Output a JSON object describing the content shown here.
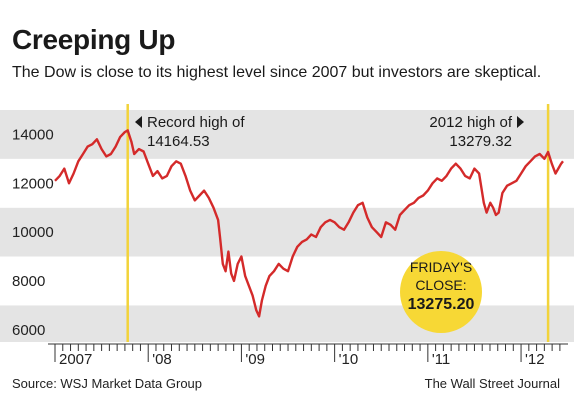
{
  "chart_data": {
    "type": "line",
    "title": "Creeping Up",
    "subtitle": "The Dow is close to its highest level since 2007 but investors are skeptical.",
    "xlabel": "",
    "ylabel": "",
    "ylim": [
      5500,
      15000
    ],
    "yticks": [
      {
        "value": 6000,
        "label": "6000"
      },
      {
        "value": 8000,
        "label": "8000"
      },
      {
        "value": 10000,
        "label": "10000"
      },
      {
        "value": 12000,
        "label": "12000"
      },
      {
        "value": 14000,
        "label": "14000"
      }
    ],
    "xlim": [
      2007.0,
      2012.45
    ],
    "xticks": [
      {
        "value": 2007,
        "label": "2007"
      },
      {
        "value": 2008,
        "label": "'08"
      },
      {
        "value": 2009,
        "label": "'09"
      },
      {
        "value": 2010,
        "label": "'10"
      },
      {
        "value": 2011,
        "label": "'11"
      },
      {
        "value": 2012,
        "label": "'12"
      }
    ],
    "grid": "horizontal bands",
    "series": [
      {
        "name": "",
        "color": "#d42a2a",
        "points": [
          [
            2007.0,
            12100
          ],
          [
            2007.05,
            12300
          ],
          [
            2007.1,
            12600
          ],
          [
            2007.15,
            12000
          ],
          [
            2007.2,
            12400
          ],
          [
            2007.25,
            12900
          ],
          [
            2007.3,
            13200
          ],
          [
            2007.35,
            13500
          ],
          [
            2007.4,
            13600
          ],
          [
            2007.45,
            13800
          ],
          [
            2007.5,
            13400
          ],
          [
            2007.55,
            13100
          ],
          [
            2007.6,
            13200
          ],
          [
            2007.65,
            13500
          ],
          [
            2007.7,
            13900
          ],
          [
            2007.75,
            14100
          ],
          [
            2007.78,
            14164.53
          ],
          [
            2007.82,
            13700
          ],
          [
            2007.85,
            13200
          ],
          [
            2007.9,
            13400
          ],
          [
            2007.95,
            13300
          ],
          [
            2008.0,
            12800
          ],
          [
            2008.05,
            12300
          ],
          [
            2008.1,
            12500
          ],
          [
            2008.15,
            12200
          ],
          [
            2008.2,
            12300
          ],
          [
            2008.25,
            12700
          ],
          [
            2008.3,
            12900
          ],
          [
            2008.35,
            12800
          ],
          [
            2008.4,
            12300
          ],
          [
            2008.45,
            11700
          ],
          [
            2008.5,
            11300
          ],
          [
            2008.55,
            11500
          ],
          [
            2008.6,
            11700
          ],
          [
            2008.65,
            11400
          ],
          [
            2008.7,
            11000
          ],
          [
            2008.75,
            10500
          ],
          [
            2008.77,
            9800
          ],
          [
            2008.8,
            8700
          ],
          [
            2008.83,
            8400
          ],
          [
            2008.86,
            9200
          ],
          [
            2008.89,
            8300
          ],
          [
            2008.92,
            8000
          ],
          [
            2008.96,
            8700
          ],
          [
            2009.0,
            9000
          ],
          [
            2009.04,
            8200
          ],
          [
            2009.08,
            7800
          ],
          [
            2009.12,
            7400
          ],
          [
            2009.16,
            6800
          ],
          [
            2009.19,
            6547
          ],
          [
            2009.22,
            7200
          ],
          [
            2009.26,
            7800
          ],
          [
            2009.3,
            8200
          ],
          [
            2009.35,
            8400
          ],
          [
            2009.4,
            8700
          ],
          [
            2009.45,
            8500
          ],
          [
            2009.5,
            8400
          ],
          [
            2009.55,
            9000
          ],
          [
            2009.6,
            9400
          ],
          [
            2009.65,
            9600
          ],
          [
            2009.7,
            9700
          ],
          [
            2009.75,
            9900
          ],
          [
            2009.8,
            9800
          ],
          [
            2009.85,
            10200
          ],
          [
            2009.9,
            10400
          ],
          [
            2009.95,
            10500
          ],
          [
            2010.0,
            10400
          ],
          [
            2010.05,
            10200
          ],
          [
            2010.1,
            10100
          ],
          [
            2010.15,
            10400
          ],
          [
            2010.2,
            10800
          ],
          [
            2010.25,
            11100
          ],
          [
            2010.3,
            11200
          ],
          [
            2010.35,
            10600
          ],
          [
            2010.4,
            10200
          ],
          [
            2010.45,
            10000
          ],
          [
            2010.5,
            9800
          ],
          [
            2010.55,
            10400
          ],
          [
            2010.6,
            10300
          ],
          [
            2010.65,
            10100
          ],
          [
            2010.7,
            10700
          ],
          [
            2010.75,
            10900
          ],
          [
            2010.8,
            11100
          ],
          [
            2010.85,
            11200
          ],
          [
            2010.9,
            11400
          ],
          [
            2010.95,
            11500
          ],
          [
            2011.0,
            11700
          ],
          [
            2011.05,
            12000
          ],
          [
            2011.1,
            12200
          ],
          [
            2011.15,
            12100
          ],
          [
            2011.2,
            12300
          ],
          [
            2011.25,
            12600
          ],
          [
            2011.3,
            12800
          ],
          [
            2011.35,
            12600
          ],
          [
            2011.4,
            12300
          ],
          [
            2011.45,
            12200
          ],
          [
            2011.5,
            12600
          ],
          [
            2011.55,
            12400
          ],
          [
            2011.6,
            11200
          ],
          [
            2011.63,
            10800
          ],
          [
            2011.67,
            11200
          ],
          [
            2011.7,
            11000
          ],
          [
            2011.73,
            10700
          ],
          [
            2011.76,
            10800
          ],
          [
            2011.8,
            11600
          ],
          [
            2011.85,
            11900
          ],
          [
            2011.9,
            12000
          ],
          [
            2011.95,
            12100
          ],
          [
            2012.0,
            12400
          ],
          [
            2012.05,
            12700
          ],
          [
            2012.1,
            12900
          ],
          [
            2012.15,
            13100
          ],
          [
            2012.2,
            13200
          ],
          [
            2012.25,
            13000
          ],
          [
            2012.29,
            13279.32
          ],
          [
            2012.33,
            12800
          ],
          [
            2012.37,
            12400
          ],
          [
            2012.4,
            12600
          ],
          [
            2012.43,
            12800
          ],
          [
            2012.45,
            12900
          ]
        ]
      }
    ],
    "annotations": {
      "record_high": {
        "x": 2007.78,
        "line1": "Record high of",
        "line2": "14164.53"
      },
      "high_2012": {
        "x": 2012.29,
        "line1": "2012 high of",
        "line2": "13279.32"
      },
      "friday": {
        "line1": "FRIDAY'S",
        "line2": "CLOSE:",
        "value": "13275.20"
      }
    }
  },
  "footer": {
    "source": "Source: WSJ Market Data Group",
    "credit": "The Wall Street Journal"
  },
  "colors": {
    "line": "#d42a2a",
    "band": "#e4e4e4",
    "marker_line": "#f2d33a",
    "badge": "#f7d835"
  }
}
